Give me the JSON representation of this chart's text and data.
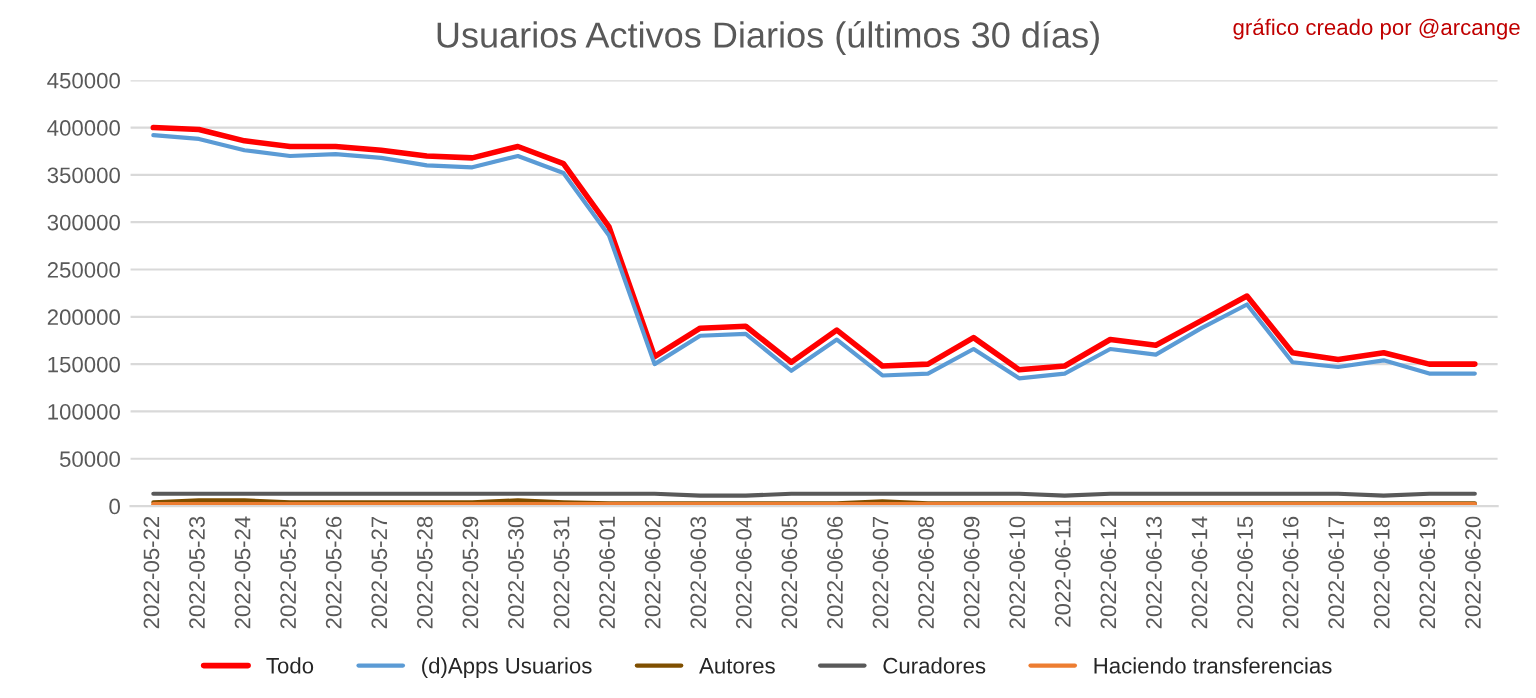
{
  "chart_data": {
    "type": "line",
    "title": "Usuarios Activos Diarios (últimos 30 días)",
    "annotations": [
      "gráfico creado por @arcange"
    ],
    "categories": [
      "2022-05-22",
      "2022-05-23",
      "2022-05-24",
      "2022-05-25",
      "2022-05-26",
      "2022-05-27",
      "2022-05-28",
      "2022-05-29",
      "2022-05-30",
      "2022-05-31",
      "2022-06-01",
      "2022-06-02",
      "2022-06-03",
      "2022-06-04",
      "2022-06-05",
      "2022-06-06",
      "2022-06-07",
      "2022-06-08",
      "2022-06-09",
      "2022-06-10",
      "2022-06-11",
      "2022-06-12",
      "2022-06-13",
      "2022-06-14",
      "2022-06-15",
      "2022-06-16",
      "2022-06-17",
      "2022-06-18",
      "2022-06-19",
      "2022-06-20"
    ],
    "series": [
      {
        "name": "Todo",
        "color": "#ff0000",
        "values": [
          400000,
          398000,
          386000,
          380000,
          380000,
          376000,
          370000,
          368000,
          380000,
          362000,
          295000,
          158000,
          188000,
          190000,
          152000,
          186000,
          148000,
          150000,
          178000,
          144000,
          148000,
          176000,
          170000,
          196000,
          222000,
          162000,
          155000,
          162000,
          150000,
          150000
        ]
      },
      {
        "name": "(d)Apps Usuarios",
        "color": "#5b9bd5",
        "values": [
          392000,
          388000,
          376000,
          370000,
          372000,
          368000,
          360000,
          358000,
          370000,
          352000,
          286000,
          150000,
          180000,
          182000,
          143000,
          176000,
          138000,
          140000,
          166000,
          135000,
          140000,
          166000,
          160000,
          188000,
          213000,
          152000,
          147000,
          154000,
          140000,
          140000
        ]
      },
      {
        "name": "Autores",
        "color": "#7f4f00",
        "values": [
          4000,
          6000,
          6000,
          4000,
          4000,
          4000,
          4000,
          4000,
          6000,
          4000,
          3000,
          3000,
          3000,
          3000,
          3000,
          3000,
          5000,
          3000,
          3000,
          3000,
          3000,
          3000,
          3000,
          3000,
          3000,
          3000,
          3000,
          3000,
          3000,
          3000
        ]
      },
      {
        "name": "Curadores",
        "color": "#595959",
        "values": [
          13000,
          13000,
          13000,
          13000,
          13000,
          13000,
          13000,
          13000,
          13000,
          13000,
          13000,
          13000,
          11000,
          11000,
          13000,
          13000,
          13000,
          13000,
          13000,
          13000,
          11000,
          13000,
          13000,
          13000,
          13000,
          13000,
          13000,
          11000,
          13000,
          13000
        ]
      },
      {
        "name": "Haciendo transferencias",
        "color": "#ed7d31",
        "values": [
          2000,
          2000,
          2000,
          2000,
          2000,
          2000,
          2000,
          2000,
          2000,
          2000,
          2000,
          2000,
          2000,
          2000,
          2000,
          2000,
          2000,
          2000,
          2000,
          2000,
          2000,
          2000,
          2000,
          2000,
          2000,
          2000,
          2000,
          2000,
          2000,
          2000
        ]
      }
    ],
    "ylim": [
      0,
      450000
    ],
    "yticks": [
      0,
      50000,
      100000,
      150000,
      200000,
      250000,
      300000,
      350000,
      400000,
      450000
    ],
    "grid": "y",
    "legend": "bottom",
    "marker": "none",
    "line_style": "solid"
  }
}
